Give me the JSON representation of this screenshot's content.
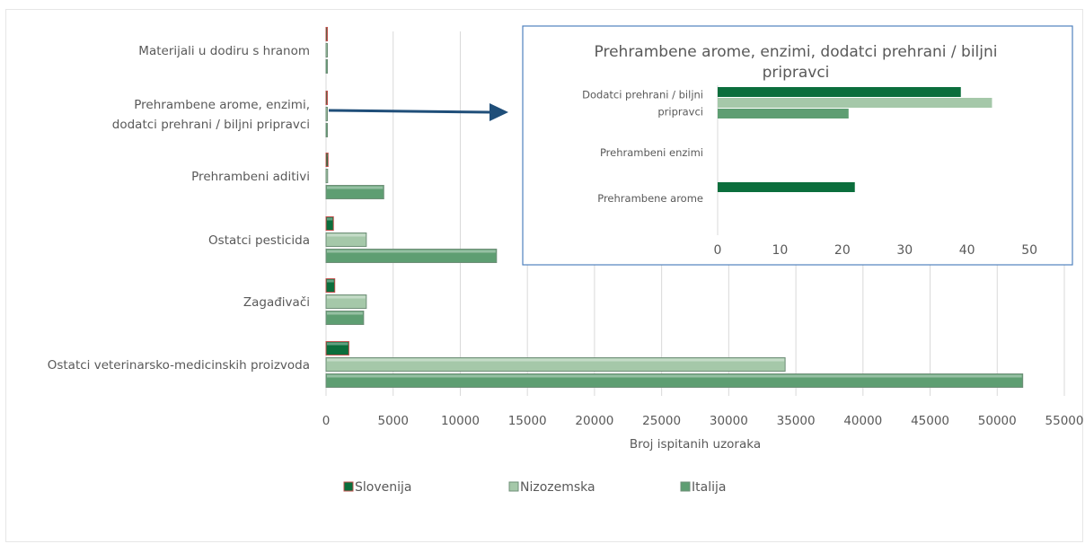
{
  "main_chart": {
    "xlabel": "Broj ispitanih uzoraka",
    "xlim": [
      0,
      55000
    ],
    "ticks": [
      "0",
      "5000",
      "10000",
      "15000",
      "20000",
      "25000",
      "30000",
      "35000",
      "40000",
      "45000",
      "50000",
      "55000"
    ],
    "categories": [
      [
        "Materijali u dodiru s hranom"
      ],
      [
        "Prehrambene arome, enzimi,",
        "dodatci prehrani / biljni pripravci"
      ],
      [
        "Prehrambeni aditivi"
      ],
      [
        "Ostatci pesticida"
      ],
      [
        "Zagađivači"
      ],
      [
        "Ostatci veterinarsko-medicinskih proizvoda"
      ]
    ],
    "legend": [
      "Slovenija",
      "Nizozemska",
      "Italija"
    ],
    "legend_position": "bottom",
    "grid": true
  },
  "inset_chart": {
    "title_lines": [
      "Prehrambene arome, enzimi, dodatci prehrani / biljni",
      "pripravci"
    ],
    "xlim": [
      0,
      52
    ],
    "ticks": [
      "0",
      "10",
      "20",
      "30",
      "40",
      "50"
    ],
    "categories": [
      [
        "Dodatci prehrani / biljni",
        "pripravci"
      ],
      [
        "Prehrambeni enzimi"
      ],
      [
        "Prehrambene arome"
      ]
    ]
  },
  "colors": {
    "slovenija": "#0b6e3c",
    "nizozemska": "#a5c8a9",
    "italija": "#5e9e72",
    "arrow": "#1f4e79",
    "slovenija_edge": "#c0504d"
  },
  "chart_data": [
    {
      "type": "bar",
      "orientation": "horizontal",
      "categories": [
        "Materijali u dodiru s hranom",
        "Prehrambene arome, enzimi, dodatci prehrani / biljni pripravci",
        "Prehrambeni aditivi",
        "Ostatci pesticida",
        "Zagađivači",
        "Ostatci veterinarsko-medicinskih proizvoda"
      ],
      "series": [
        {
          "name": "Slovenija",
          "values": [
            80,
            60,
            150,
            550,
            650,
            1700
          ]
        },
        {
          "name": "Nizozemska",
          "values": [
            50,
            40,
            120,
            3000,
            3000,
            34200
          ]
        },
        {
          "name": "Italija",
          "values": [
            30,
            20,
            4300,
            12700,
            2800,
            51900
          ]
        }
      ],
      "xlabel": "Broj ispitanih uzoraka",
      "xlim": [
        0,
        55000
      ]
    },
    {
      "type": "bar",
      "orientation": "horizontal",
      "title": "Prehrambene arome, enzimi, dodatci prehrani / biljni pripravci",
      "categories": [
        "Dodatci prehrani / biljni pripravci",
        "Prehrambeni enzimi",
        "Prehrambene arome"
      ],
      "series": [
        {
          "values": [
            39,
            0,
            22
          ]
        },
        {
          "values": [
            44,
            0,
            0
          ]
        },
        {
          "values": [
            21,
            0,
            0
          ]
        }
      ],
      "xlim": [
        0,
        52
      ]
    }
  ]
}
